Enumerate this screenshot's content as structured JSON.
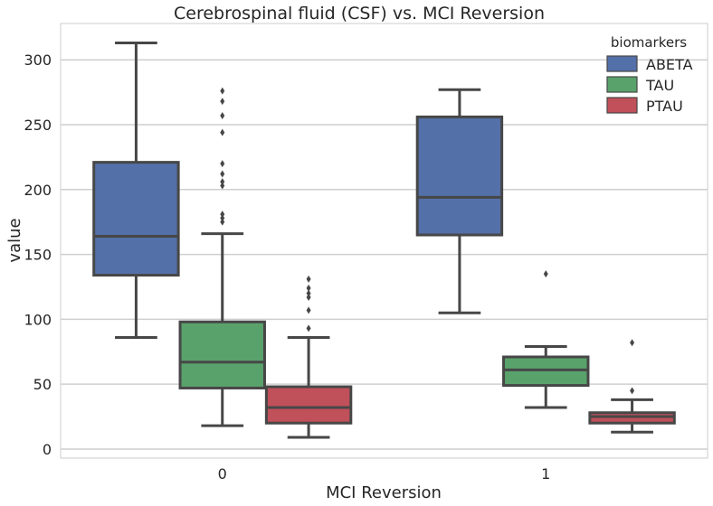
{
  "chart_data": {
    "type": "box",
    "title": "Cerebrospinal fluid (CSF) vs. MCI Reversion",
    "xlabel": "MCI Reversion",
    "ylabel": "value",
    "ylim": [
      -7,
      328
    ],
    "yticks": [
      0,
      50,
      100,
      150,
      200,
      250,
      300
    ],
    "categories": [
      "0",
      "1"
    ],
    "grid": "horizontal",
    "legend": {
      "title": "biomarkers",
      "placement": "top-right"
    },
    "colors": {
      "ABETA": "#5470a8",
      "TAU": "#59a26b",
      "PTAU": "#c0505a",
      "line": "#474747",
      "grid": "#cfcfcf"
    },
    "series": [
      {
        "name": "ABETA",
        "boxes": [
          {
            "category": "0",
            "whisker_low": 86,
            "q1": 134,
            "median": 164,
            "q3": 221,
            "whisker_high": 313,
            "outliers": []
          },
          {
            "category": "1",
            "whisker_low": 105,
            "q1": 165,
            "median": 194,
            "q3": 256,
            "whisker_high": 277,
            "outliers": []
          }
        ]
      },
      {
        "name": "TAU",
        "boxes": [
          {
            "category": "0",
            "whisker_low": 18,
            "q1": 47,
            "median": 67,
            "q3": 98,
            "whisker_high": 166,
            "outliers": [
              175,
              178,
              181,
              203,
              206,
              212,
              220,
              244,
              257,
              268,
              276
            ]
          },
          {
            "category": "1",
            "whisker_low": 32,
            "q1": 49,
            "median": 61,
            "q3": 71,
            "whisker_high": 79,
            "outliers": [
              135
            ]
          }
        ]
      },
      {
        "name": "PTAU",
        "boxes": [
          {
            "category": "0",
            "whisker_low": 9,
            "q1": 20,
            "median": 32,
            "q3": 48,
            "whisker_high": 86,
            "outliers": [
              93,
              107,
              117,
              120,
              124,
              131
            ]
          },
          {
            "category": "1",
            "whisker_low": 13,
            "q1": 20,
            "median": 25,
            "q3": 28,
            "whisker_high": 38,
            "outliers": [
              45,
              82
            ]
          }
        ]
      }
    ]
  }
}
